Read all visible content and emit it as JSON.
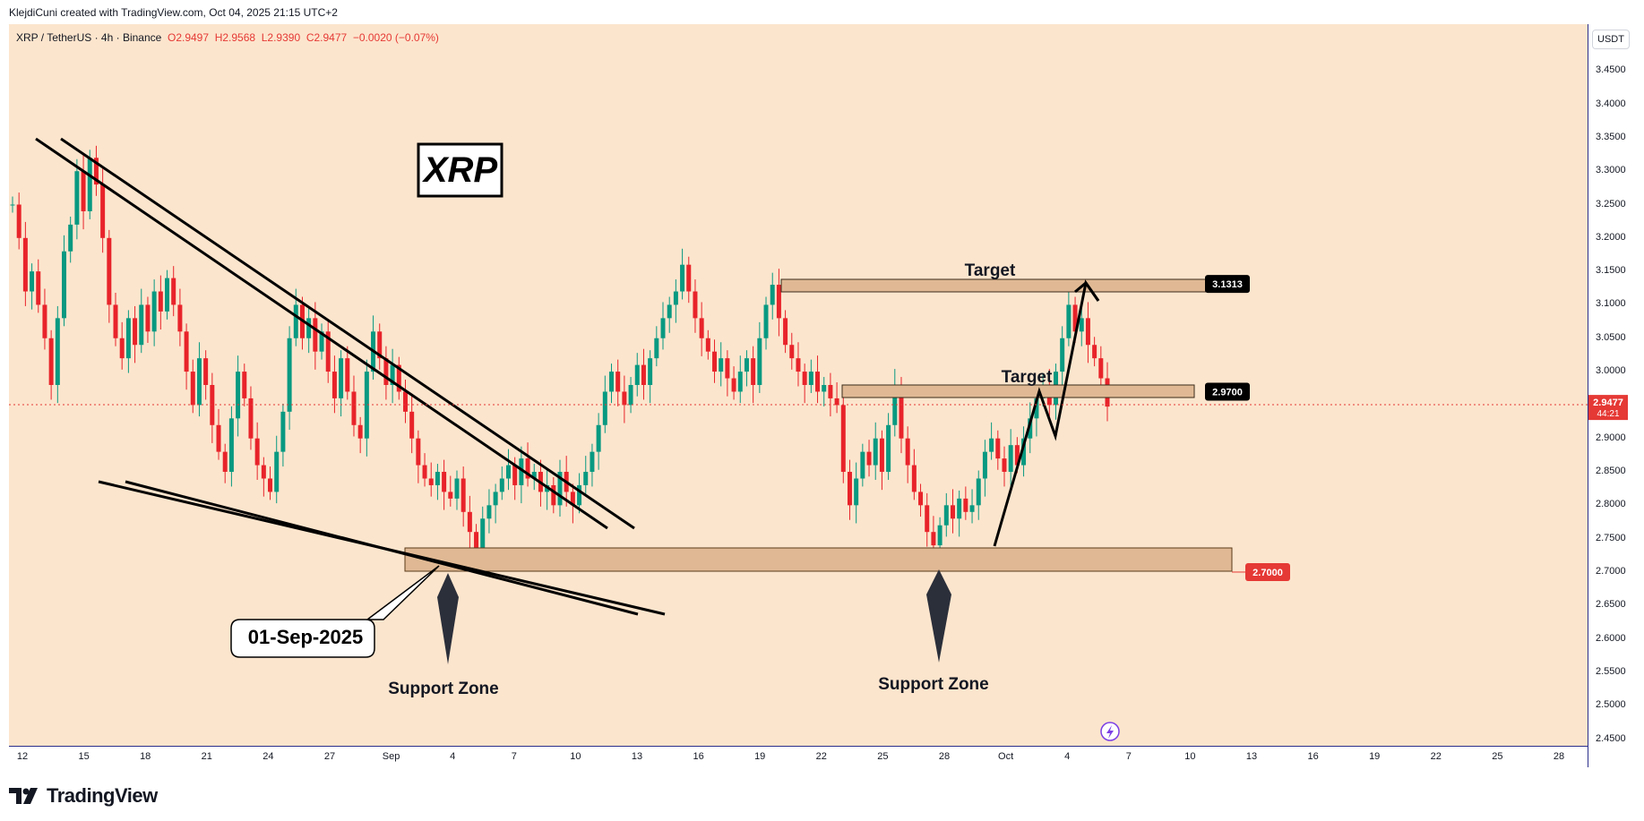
{
  "attribution": "KlejdiCuni created with TradingView.com, Oct 04, 2025 21:15 UTC+2",
  "header": {
    "symbol": "XRP / TetherUS · 4h · Binance",
    "open": "O2.9497",
    "high": "H2.9568",
    "low": "L2.9390",
    "close": "C2.9477",
    "change": "−0.0020 (−0.07%)"
  },
  "currency_badge": "USDT",
  "brand": "TradingView",
  "colors": {
    "background": "#fce5cd",
    "up_candle": "#089981",
    "down_candle": "#e8232a",
    "support_zone_fill": "#e0b994",
    "current_price_tag": "#e53935",
    "label_tag": "#000000"
  },
  "chart_data": {
    "type": "candlestick",
    "symbol": "XRP / TetherUS",
    "interval": "4h",
    "exchange": "Binance",
    "ylim": [
      2.44,
      3.52
    ],
    "y_ticks": [
      "3.4500",
      "3.4000",
      "3.3500",
      "3.3000",
      "3.2500",
      "3.2000",
      "3.1500",
      "3.1000",
      "3.0500",
      "3.0000",
      "2.9500",
      "2.9000",
      "2.8500",
      "2.8000",
      "2.7500",
      "2.7000",
      "2.6500",
      "2.6000",
      "2.5500",
      "2.5000",
      "2.4500"
    ],
    "x_ticks": [
      "12",
      "15",
      "18",
      "21",
      "24",
      "27",
      "Sep",
      "4",
      "7",
      "10",
      "13",
      "16",
      "19",
      "22",
      "25",
      "28",
      "Oct",
      "4",
      "7",
      "10",
      "13",
      "16",
      "19",
      "22",
      "25",
      "28"
    ],
    "last_price": "2.9477",
    "countdown": "44:21",
    "price_labels": [
      {
        "price": 3.1313,
        "text": "3.1313"
      },
      {
        "price": 2.97,
        "text": "2.9700"
      },
      {
        "price": 2.7,
        "text": "2.7000"
      }
    ],
    "annotations": {
      "title_box": "XRP",
      "date_callout": "01-Sep-2025",
      "support_left": "Support Zone",
      "support_right": "Support Zone",
      "target_upper": "Target",
      "target_lower": "Target"
    },
    "closes": [
      3.25,
      3.2,
      3.12,
      3.15,
      3.1,
      3.05,
      2.98,
      3.08,
      3.18,
      3.22,
      3.3,
      3.24,
      3.32,
      3.28,
      3.2,
      3.1,
      3.05,
      3.02,
      3.08,
      3.04,
      3.1,
      3.06,
      3.12,
      3.09,
      3.14,
      3.1,
      3.06,
      3.0,
      2.95,
      3.02,
      2.98,
      2.92,
      2.88,
      2.85,
      2.93,
      3.0,
      2.96,
      2.9,
      2.86,
      2.84,
      2.82,
      2.88,
      2.94,
      3.05,
      3.1,
      3.05,
      3.08,
      3.03,
      3.06,
      3.0,
      2.96,
      3.02,
      2.97,
      2.92,
      2.9,
      3.0,
      3.06,
      3.02,
      2.98,
      3.01,
      2.97,
      2.94,
      2.9,
      2.86,
      2.84,
      2.83,
      2.85,
      2.82,
      2.81,
      2.84,
      2.79,
      2.76,
      2.73,
      2.78,
      2.8,
      2.82,
      2.84,
      2.86,
      2.83,
      2.87,
      2.84,
      2.85,
      2.82,
      2.83,
      2.8,
      2.85,
      2.82,
      2.8,
      2.83,
      2.85,
      2.88,
      2.92,
      2.97,
      3.0,
      2.97,
      2.95,
      2.98,
      3.01,
      2.98,
      3.02,
      3.05,
      3.08,
      3.1,
      3.12,
      3.16,
      3.12,
      3.08,
      3.05,
      3.03,
      3.0,
      3.02,
      2.99,
      2.97,
      3.0,
      3.02,
      2.98,
      3.05,
      3.1,
      3.13,
      3.08,
      3.04,
      3.02,
      3.0,
      2.98,
      3.0,
      2.97,
      2.98,
      2.96,
      2.95,
      2.85,
      2.8,
      2.84,
      2.88,
      2.86,
      2.9,
      2.85,
      2.92,
      2.98,
      2.9,
      2.86,
      2.82,
      2.8,
      2.76,
      2.74,
      2.77,
      2.8,
      2.78,
      2.81,
      2.79,
      2.8,
      2.84,
      2.88,
      2.9,
      2.87,
      2.85,
      2.89,
      2.86,
      2.9,
      2.93,
      2.96,
      2.98,
      2.95,
      3.0,
      3.05,
      3.1,
      3.06,
      3.08,
      3.04,
      3.02,
      2.99,
      2.9477
    ]
  }
}
